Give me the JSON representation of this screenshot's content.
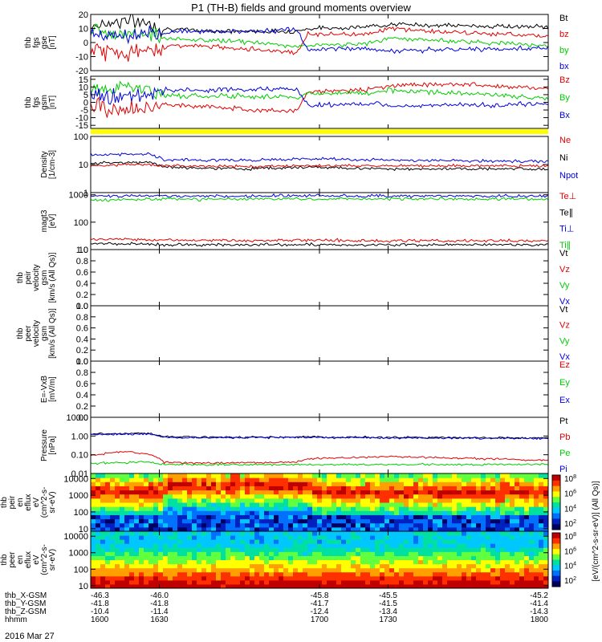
{
  "chart_data": {
    "type": "line",
    "title": "P1 (TH-B) fields and ground moments overview",
    "date_label": "2016 Mar 27",
    "time_axis": {
      "range": [
        1600,
        1800
      ],
      "ticks": [
        "1600",
        "1630",
        "1700",
        "1730",
        "1800"
      ]
    },
    "orbit_rows": [
      {
        "label": "thb_X-GSM",
        "values": [
          "-46.3",
          "-46.0",
          "-45.8",
          "-45.5",
          "-45.2"
        ]
      },
      {
        "label": "thb_Y-GSM",
        "values": [
          "-41.8",
          "-41.8",
          "-41.7",
          "-41.5",
          "-41.4"
        ]
      },
      {
        "label": "thb_Z-GSM",
        "values": [
          "-10.4",
          "-11.4",
          "-12.4",
          "-13.4",
          "-14.3"
        ]
      },
      {
        "label": "hhmm",
        "values": [
          "1600",
          "1630",
          "1700",
          "1730",
          "1800"
        ]
      }
    ],
    "panels": [
      {
        "id": "fgs_gse",
        "ylabel": [
          "thb",
          "fgs",
          "gse",
          "[nT]"
        ],
        "ylim": [
          -20,
          20
        ],
        "ticks": [
          "20",
          "10",
          "0",
          "-10",
          "-20"
        ],
        "legend": [
          {
            "name": "Bt",
            "color": "#000000"
          },
          {
            "name": "bz",
            "color": "#e00000"
          },
          {
            "name": "by",
            "color": "#00cc00"
          },
          {
            "name": "bx",
            "color": "#0000dd"
          }
        ],
        "series": [
          {
            "name": "Bt",
            "color": "#000000",
            "x": [
              1600,
              1615,
              1625,
              1632,
              1640,
              1665,
              1690,
              1695,
              1720,
              1730,
              1760,
              1800
            ],
            "y": [
              12,
              16,
              14,
              10,
              9,
              8,
              8,
              10,
              11,
              13,
              12,
              11
            ]
          },
          {
            "name": "bz",
            "color": "#e00000",
            "x": [
              1600,
              1615,
              1625,
              1632,
              1640,
              1665,
              1690,
              1695,
              1720,
              1730,
              1760,
              1800
            ],
            "y": [
              -5,
              -8,
              -6,
              -3,
              -2,
              -4,
              -7,
              6,
              6,
              10,
              7,
              5
            ]
          },
          {
            "name": "by",
            "color": "#00cc00",
            "x": [
              1600,
              1615,
              1625,
              1632,
              1640,
              1665,
              1690,
              1695,
              1720,
              1730,
              1760,
              1800
            ],
            "y": [
              8,
              7,
              7,
              3,
              2,
              1,
              -3,
              -2,
              -1,
              3,
              1,
              -2
            ]
          },
          {
            "name": "bx",
            "color": "#0000dd",
            "x": [
              1600,
              1615,
              1625,
              1632,
              1640,
              1665,
              1690,
              1695,
              1720,
              1730,
              1760,
              1800
            ],
            "y": [
              5,
              4,
              4,
              7,
              8,
              8,
              9,
              -5,
              -4,
              -6,
              -5,
              -4
            ]
          }
        ]
      },
      {
        "id": "fgs_gsm",
        "ylabel": [
          "thb",
          "fgs",
          "gsm",
          "[nT]"
        ],
        "ylim": [
          -17,
          17
        ],
        "ticks": [
          "15",
          "10",
          "5",
          "0",
          "-5",
          "-10",
          "-15"
        ],
        "legend": [
          {
            "name": "Bz",
            "color": "#e00000"
          },
          {
            "name": "By",
            "color": "#00cc00"
          },
          {
            "name": "Bx",
            "color": "#0000dd"
          }
        ],
        "series": [
          {
            "name": "Bz",
            "color": "#e00000",
            "x": [
              1600,
              1615,
              1625,
              1632,
              1640,
              1665,
              1690,
              1695,
              1720,
              1730,
              1760,
              1800
            ],
            "y": [
              -3,
              -5,
              -4,
              -2,
              -2,
              -4,
              -6,
              7,
              8,
              11,
              12,
              9
            ]
          },
          {
            "name": "By",
            "color": "#00cc00",
            "x": [
              1600,
              1615,
              1625,
              1632,
              1640,
              1665,
              1690,
              1695,
              1720,
              1730,
              1760,
              1800
            ],
            "y": [
              9,
              10,
              8,
              5,
              4,
              4,
              3,
              6,
              6,
              8,
              6,
              3
            ]
          },
          {
            "name": "Bx",
            "color": "#0000dd",
            "x": [
              1600,
              1615,
              1625,
              1632,
              1640,
              1665,
              1690,
              1695,
              1720,
              1730,
              1760,
              1800
            ],
            "y": [
              4,
              4,
              5,
              8,
              8,
              8,
              9,
              -2,
              -1,
              -2,
              -2,
              -1
            ]
          }
        ]
      },
      {
        "id": "density",
        "ylabel": [
          "Density",
          "[1/cm-3]"
        ],
        "scale": "log",
        "ylim": [
          1,
          100
        ],
        "ticks": [
          "100",
          "10",
          "1"
        ],
        "legend": [
          {
            "name": "Ne",
            "color": "#e00000"
          },
          {
            "name": "Ni",
            "color": "#000000"
          },
          {
            "name": "Npot",
            "color": "#0000dd"
          }
        ],
        "series": [
          {
            "name": "Npot",
            "color": "#0000dd",
            "x": [
              1600,
              1625,
              1632,
              1665,
              1695,
              1730,
              1800
            ],
            "y": [
              22,
              24,
              15,
              14,
              16,
              14,
              13
            ]
          },
          {
            "name": "Ni",
            "color": "#000000",
            "x": [
              1600,
              1625,
              1632,
              1665,
              1695,
              1730,
              1800
            ],
            "y": [
              11,
              12,
              8,
              7,
              8,
              7,
              7
            ]
          },
          {
            "name": "Ne",
            "color": "#e00000",
            "x": [
              1600,
              1625,
              1632,
              1665,
              1695,
              1730,
              1800
            ],
            "y": [
              9,
              10,
              9,
              8.5,
              9,
              9,
              9
            ]
          }
        ]
      },
      {
        "id": "temperature",
        "ylabel": [
          "magt3",
          "[eV]"
        ],
        "scale": "log",
        "ylim": [
          10,
          1200
        ],
        "ticks": [
          "1000",
          "100",
          "10"
        ],
        "legend": [
          {
            "name": "Te⊥",
            "color": "#e00000"
          },
          {
            "name": "Te∥",
            "color": "#000000"
          },
          {
            "name": "Ti⊥",
            "color": "#0000dd"
          },
          {
            "name": "Ti∥",
            "color": "#00cc00"
          }
        ],
        "series": [
          {
            "name": "Ti⊥",
            "color": "#0000dd",
            "x": [
              1600,
              1632,
              1665,
              1695,
              1730,
              1800
            ],
            "y": [
              900,
              920,
              900,
              930,
              900,
              900
            ]
          },
          {
            "name": "Ti∥",
            "color": "#00cc00",
            "x": [
              1600,
              1632,
              1665,
              1695,
              1730,
              1800
            ],
            "y": [
              650,
              700,
              700,
              720,
              700,
              700
            ]
          },
          {
            "name": "Te⊥",
            "color": "#e00000",
            "x": [
              1600,
              1632,
              1665,
              1695,
              1730,
              1800
            ],
            "y": [
              25,
              22,
              21,
              22,
              21,
              21
            ]
          },
          {
            "name": "Te∥",
            "color": "#000000",
            "x": [
              1600,
              1632,
              1665,
              1695,
              1730,
              1800
            ],
            "y": [
              17,
              15,
              15,
              15,
              15,
              15
            ]
          }
        ]
      },
      {
        "id": "peir_velocity",
        "ylabel": [
          "thb",
          "peir",
          "velocity",
          "gsm",
          "[km/s (All Qs)]"
        ],
        "ylim": [
          0,
          1
        ],
        "ticks": [
          "1.0",
          "0.8",
          "0.6",
          "0.4",
          "0.2",
          "0.0"
        ],
        "legend": [
          {
            "name": "Vt",
            "color": "#000000"
          },
          {
            "name": "Vz",
            "color": "#e00000"
          },
          {
            "name": "Vy",
            "color": "#00cc00"
          },
          {
            "name": "Vx",
            "color": "#0000dd"
          }
        ],
        "series": []
      },
      {
        "id": "peer_velocity",
        "ylabel": [
          "thb",
          "peer",
          "velocity",
          "gsm",
          "[km/s (All Qs)]"
        ],
        "ylim": [
          0,
          1
        ],
        "ticks": [
          "1.0",
          "0.8",
          "0.6",
          "0.4",
          "0.2",
          "0.0"
        ],
        "legend": [
          {
            "name": "Vt",
            "color": "#000000"
          },
          {
            "name": "Vz",
            "color": "#e00000"
          },
          {
            "name": "Vy",
            "color": "#00cc00"
          },
          {
            "name": "Vx",
            "color": "#0000dd"
          }
        ],
        "series": []
      },
      {
        "id": "efield",
        "ylabel": [
          "E=-VxB",
          "[mV/m]"
        ],
        "ylim": [
          0,
          1
        ],
        "ticks": [
          "1.0",
          "0.8",
          "0.6",
          "0.4",
          "0.2",
          "0.0"
        ],
        "legend": [
          {
            "name": "Ez",
            "color": "#e00000"
          },
          {
            "name": "Ey",
            "color": "#00cc00"
          },
          {
            "name": "Ex",
            "color": "#0000dd"
          }
        ],
        "series": []
      },
      {
        "id": "pressure",
        "ylabel": [
          "Pressure",
          "[nPa]"
        ],
        "scale": "log",
        "ylim": [
          0.01,
          10
        ],
        "ticks": [
          "10.00",
          "1.00",
          "0.10",
          "0.01"
        ],
        "legend": [
          {
            "name": "Pt",
            "color": "#000000"
          },
          {
            "name": "Pb",
            "color": "#e00000"
          },
          {
            "name": "Pe",
            "color": "#00cc00"
          },
          {
            "name": "Pi",
            "color": "#0000dd"
          }
        ],
        "series": [
          {
            "name": "Pt",
            "color": "#000000",
            "x": [
              1600,
              1625,
              1632,
              1665,
              1695,
              1730,
              1800
            ],
            "y": [
              1.3,
              1.4,
              0.9,
              0.85,
              0.9,
              0.85,
              0.8
            ]
          },
          {
            "name": "Pi",
            "color": "#0000dd",
            "x": [
              1600,
              1625,
              1632,
              1665,
              1695,
              1730,
              1800
            ],
            "y": [
              1.2,
              1.3,
              0.85,
              0.8,
              0.85,
              0.8,
              0.75
            ]
          },
          {
            "name": "Pb",
            "color": "#e00000",
            "x": [
              1600,
              1615,
              1625,
              1632,
              1650,
              1690,
              1695,
              1730,
              1800
            ],
            "y": [
              0.09,
              0.15,
              0.11,
              0.04,
              0.035,
              0.04,
              0.06,
              0.08,
              0.05
            ]
          },
          {
            "name": "Pe",
            "color": "#00cc00",
            "x": [
              1600,
              1625,
              1632,
              1665,
              1695,
              1730,
              1800
            ],
            "y": [
              0.035,
              0.04,
              0.03,
              0.03,
              0.03,
              0.03,
              0.03
            ]
          }
        ]
      },
      {
        "id": "peir_eflux",
        "type": "heatmap",
        "ylabel": [
          "thb",
          "peir",
          "en",
          "eflux",
          "eV",
          "(cm^2-s-",
          "sr-eV)"
        ],
        "scale": "log",
        "ylim": [
          7,
          20000
        ],
        "ticks": [
          "10000",
          "1000",
          "100",
          "10"
        ]
      },
      {
        "id": "peer_eflux",
        "type": "heatmap",
        "ylabel": [
          "thb",
          "peer",
          "en",
          "eflux",
          "eV",
          "(cm^2-s-",
          "sr-eV)"
        ],
        "scale": "log",
        "ylim": [
          7,
          20000
        ],
        "ticks": [
          "10000",
          "1000",
          "100",
          "10"
        ]
      }
    ],
    "colorbars": [
      {
        "ticks": [
          "10^8",
          "10^6",
          "10^4",
          "10^2"
        ]
      },
      {
        "ticks": [
          "10^8",
          "10^6",
          "10^4",
          "10^2"
        ]
      }
    ],
    "colorbar_label": "[eV/(cm^2-s-sr-eV)] (All Qs)]"
  }
}
